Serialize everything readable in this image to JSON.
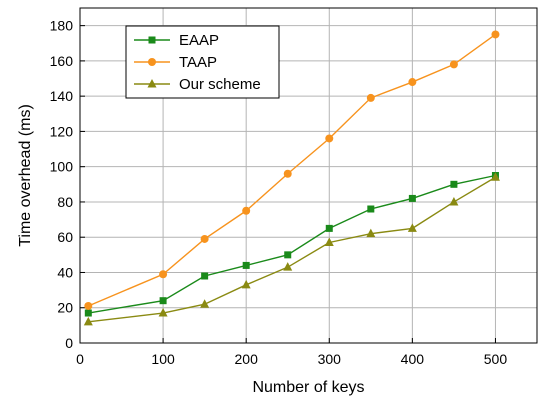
{
  "chart_data": {
    "type": "line",
    "xlabel": "Number of keys",
    "ylabel": "Time overhead (ms)",
    "xlim": [
      0,
      550
    ],
    "ylim": [
      0,
      190
    ],
    "xticks": [
      0,
      100,
      200,
      300,
      400,
      500
    ],
    "yticks": [
      0,
      20,
      40,
      60,
      80,
      100,
      120,
      140,
      160,
      180
    ],
    "grid": true,
    "legend_position": "top-left",
    "x": [
      10,
      100,
      150,
      200,
      250,
      300,
      350,
      400,
      450,
      500
    ],
    "series": [
      {
        "name": "EAAP",
        "color": "#1a8a1a",
        "marker": "square",
        "values": [
          17,
          24,
          38,
          44,
          50,
          65,
          76,
          82,
          90,
          95
        ]
      },
      {
        "name": "TAAP",
        "color": "#f7931e",
        "marker": "circle",
        "values": [
          21,
          39,
          59,
          75,
          96,
          116,
          139,
          148,
          158,
          175
        ]
      },
      {
        "name": "Our scheme",
        "color": "#8a8a12",
        "marker": "triangle",
        "values": [
          12,
          17,
          22,
          33,
          43,
          57,
          62,
          65,
          80,
          94
        ]
      }
    ]
  }
}
